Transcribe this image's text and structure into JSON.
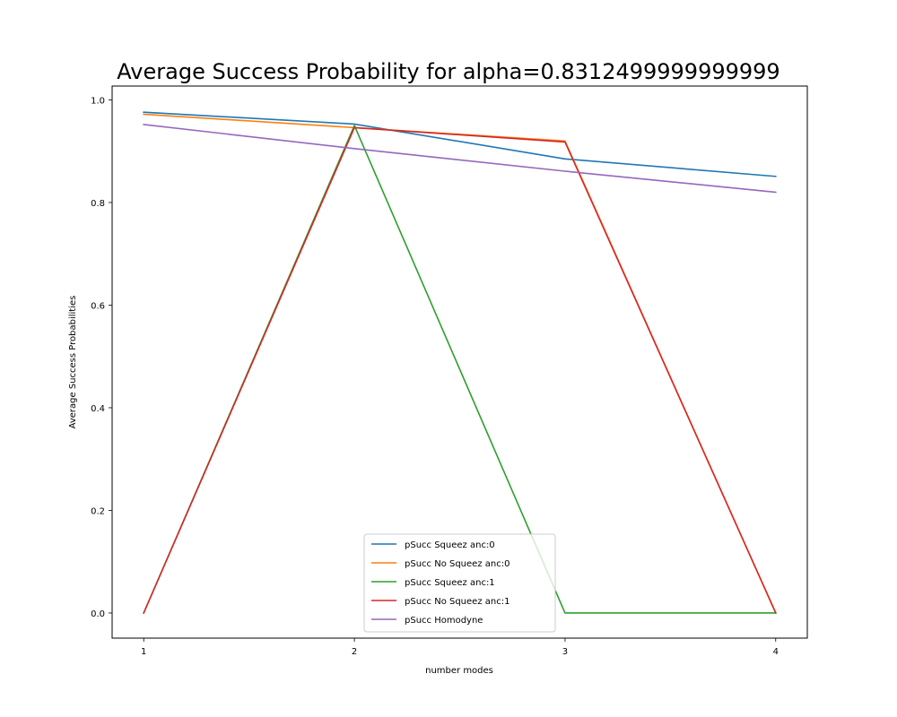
{
  "chart_data": {
    "type": "line",
    "title": "Average Success Probability for alpha=0.8312499999999999",
    "xlabel": "number modes",
    "ylabel": "Average Success Probabilities",
    "x": [
      1,
      2,
      3,
      4
    ],
    "xticks": [
      "1",
      "2",
      "3",
      "4"
    ],
    "yticks": [
      "0.0",
      "0.2",
      "0.4",
      "0.6",
      "0.8",
      "1.0"
    ],
    "xlim": [
      0.85,
      4.15
    ],
    "ylim": [
      -0.049,
      1.027
    ],
    "grid": false,
    "legend_position": "lower-center",
    "series": [
      {
        "name": "pSucc Squeez anc:0",
        "color": "#1f77b4",
        "values": [
          0.976,
          0.953,
          0.885,
          0.851
        ]
      },
      {
        "name": "pSucc No Squeez anc:0",
        "color": "#ff7f0e",
        "values": [
          0.972,
          0.946,
          0.92,
          0.0
        ]
      },
      {
        "name": "pSucc Squeez anc:1",
        "color": "#2ca02c",
        "values": [
          0.0,
          0.95,
          0.0,
          0.0
        ]
      },
      {
        "name": "pSucc No Squeez anc:1",
        "color": "#d62728",
        "values": [
          0.0,
          0.946,
          0.918,
          0.0
        ]
      },
      {
        "name": "pSucc Homodyne",
        "color": "#9467bd",
        "values": [
          0.952,
          0.905,
          0.861,
          0.82
        ]
      }
    ]
  }
}
